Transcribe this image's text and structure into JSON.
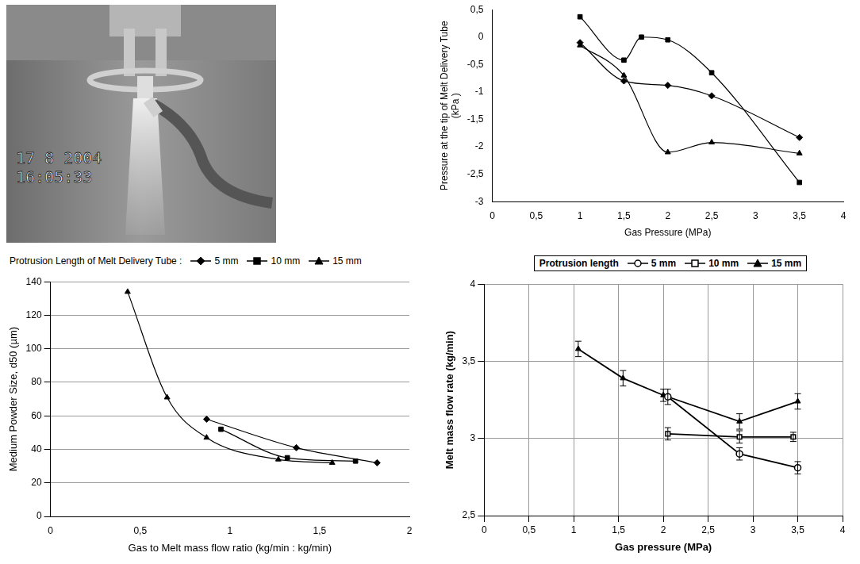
{
  "photo": {
    "timestamp": [
      "17 8 2004",
      "16:05:33"
    ]
  },
  "chart_data": [
    {
      "type": "line",
      "x_label": "Gas Pressure (MPa)",
      "y_label": "Pressure at the tip of Melt Delivery Tube (kPa )",
      "xlim": [
        0,
        4
      ],
      "xticks": [
        0,
        {
          "value": 0.5,
          "label": "0,5"
        },
        1,
        {
          "value": 1.5,
          "label": "1,5"
        },
        2,
        {
          "value": 2.5,
          "label": "2,5"
        },
        3,
        {
          "value": 3.5,
          "label": "3,5"
        },
        4
      ],
      "ylim": [
        -3,
        0.5
      ],
      "yticks": [
        -3,
        {
          "value": -2.5,
          "label": "-2,5"
        },
        -2,
        {
          "value": -1.5,
          "label": "-1,5"
        },
        -1,
        {
          "value": -0.5,
          "label": "-0,5"
        },
        0,
        {
          "value": 0.5,
          "label": "0,5"
        }
      ],
      "grid": false,
      "line_style": "smooth",
      "series": [
        {
          "color": "#000000",
          "marker": "diamond",
          "x": [
            1,
            1.5,
            2,
            2.5,
            3.5
          ],
          "values": [
            -0.1,
            -0.8,
            -0.88,
            -1.07,
            -1.83
          ]
        },
        {
          "color": "#000000",
          "marker": "square",
          "x": [
            1,
            1.5,
            1.7,
            2,
            2.5,
            3.5
          ],
          "values": [
            0.37,
            -0.42,
            0.0,
            -0.05,
            -0.65,
            -2.65
          ]
        },
        {
          "color": "#000000",
          "marker": "triangle",
          "x": [
            1,
            1.5,
            2,
            2.5,
            3.5
          ],
          "values": [
            -0.15,
            -0.7,
            -2.1,
            -1.92,
            -2.12
          ]
        }
      ]
    },
    {
      "type": "line",
      "legend_title": "Protrusion Length of Melt Delivery Tube :",
      "legend": "top",
      "x_label": "Gas to Melt mass flow ratio (kg/min : kg/min)",
      "y_label": "Medium Powder Size, d50 (µm)",
      "xlim": [
        0,
        2
      ],
      "xticks": [
        0,
        {
          "value": 0.5,
          "label": "0,5"
        },
        1,
        {
          "value": 1.5,
          "label": "1,5"
        },
        2
      ],
      "ylim": [
        0,
        140
      ],
      "yticks": [
        0,
        20,
        40,
        60,
        80,
        100,
        120,
        140
      ],
      "grid": "y",
      "line_style": "smooth",
      "series": [
        {
          "name": "5 mm",
          "color": "#000000",
          "marker": "diamond",
          "x": [
            0.87,
            1.37,
            1.82
          ],
          "values": [
            58,
            41,
            32
          ]
        },
        {
          "name": "10 mm",
          "color": "#000000",
          "marker": "square",
          "x": [
            0.95,
            1.32,
            1.7
          ],
          "values": [
            52,
            35,
            33
          ]
        },
        {
          "name": "15 mm",
          "color": "#000000",
          "marker": "triangle",
          "x": [
            0.43,
            0.65,
            0.87,
            1.27,
            1.57
          ],
          "values": [
            134,
            71,
            47,
            34,
            32
          ]
        }
      ]
    },
    {
      "type": "line",
      "legend_title": "Protrusion length",
      "legend": "top",
      "x_label": "Gas pressure (MPa)",
      "y_label": "Melt mass flow rate (kg/min)",
      "xlim": [
        0,
        4
      ],
      "xticks": [
        0,
        {
          "value": 0.5,
          "label": "0,5"
        },
        1,
        {
          "value": 1.5,
          "label": "1,5"
        },
        2,
        {
          "value": 2.5,
          "label": "2,5"
        },
        3,
        {
          "value": 3.5,
          "label": "3,5"
        },
        4
      ],
      "ylim": [
        2.5,
        4
      ],
      "yticks": [
        {
          "value": 2.5,
          "label": "2,5"
        },
        3,
        {
          "value": 3.5,
          "label": "3,5"
        },
        4
      ],
      "grid": true,
      "line_style": "solid",
      "series": [
        {
          "name": "5 mm",
          "color": "#000000",
          "marker": "open_circle",
          "x": [
            2.05,
            2.85,
            3.5
          ],
          "values": [
            3.27,
            2.9,
            2.81
          ],
          "errors": [
            0.05,
            0.04,
            0.04
          ]
        },
        {
          "name": "10 mm",
          "color": "#000000",
          "marker": "open_square",
          "x": [
            2.05,
            2.85,
            3.45
          ],
          "values": [
            3.03,
            3.01,
            3.01
          ],
          "errors": [
            0.04,
            0.04,
            0.03
          ]
        },
        {
          "name": "15 mm",
          "color": "#000000",
          "marker": "triangle",
          "x": [
            1.05,
            1.55,
            2.0,
            2.85,
            3.5
          ],
          "values": [
            3.58,
            3.39,
            3.28,
            3.11,
            3.24
          ],
          "errors": [
            0.05,
            0.05,
            0.04,
            0.05,
            0.05
          ]
        }
      ]
    }
  ]
}
